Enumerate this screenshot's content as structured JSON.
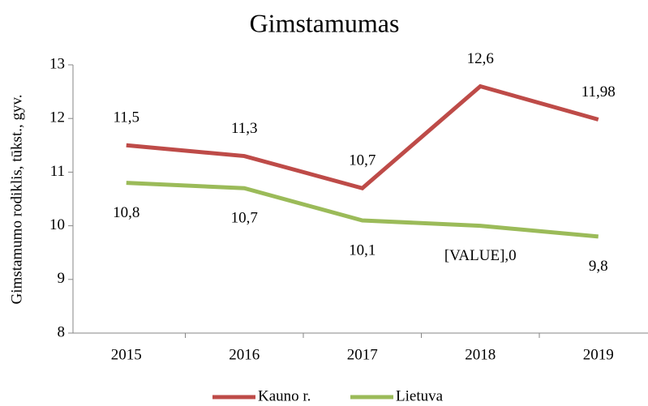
{
  "chart_data": {
    "type": "line",
    "title": "Gimstamumas",
    "y_label": "Gimstamumo rodiklis,  tūkst., gyv.",
    "categories": [
      "2015",
      "2016",
      "2017",
      "2018",
      "2019"
    ],
    "series": [
      {
        "name": "Kauno r.",
        "color": "#be4b48",
        "values": [
          11.5,
          11.3,
          10.7,
          12.6,
          11.98
        ],
        "value_labels": [
          "11,5",
          "11,3",
          "10,7",
          "12,6",
          "11,98"
        ]
      },
      {
        "name": "Lietuva",
        "color": "#9bbb59",
        "values": [
          10.8,
          10.7,
          10.1,
          10.0,
          9.8
        ],
        "value_labels": [
          "10,8",
          "10,7",
          "10,1",
          "[VALUE],0",
          "9,8"
        ]
      }
    ],
    "ylim": [
      8,
      13
    ],
    "yticks": [
      8,
      9,
      10,
      11,
      12,
      13
    ],
    "legend": "bottom"
  }
}
